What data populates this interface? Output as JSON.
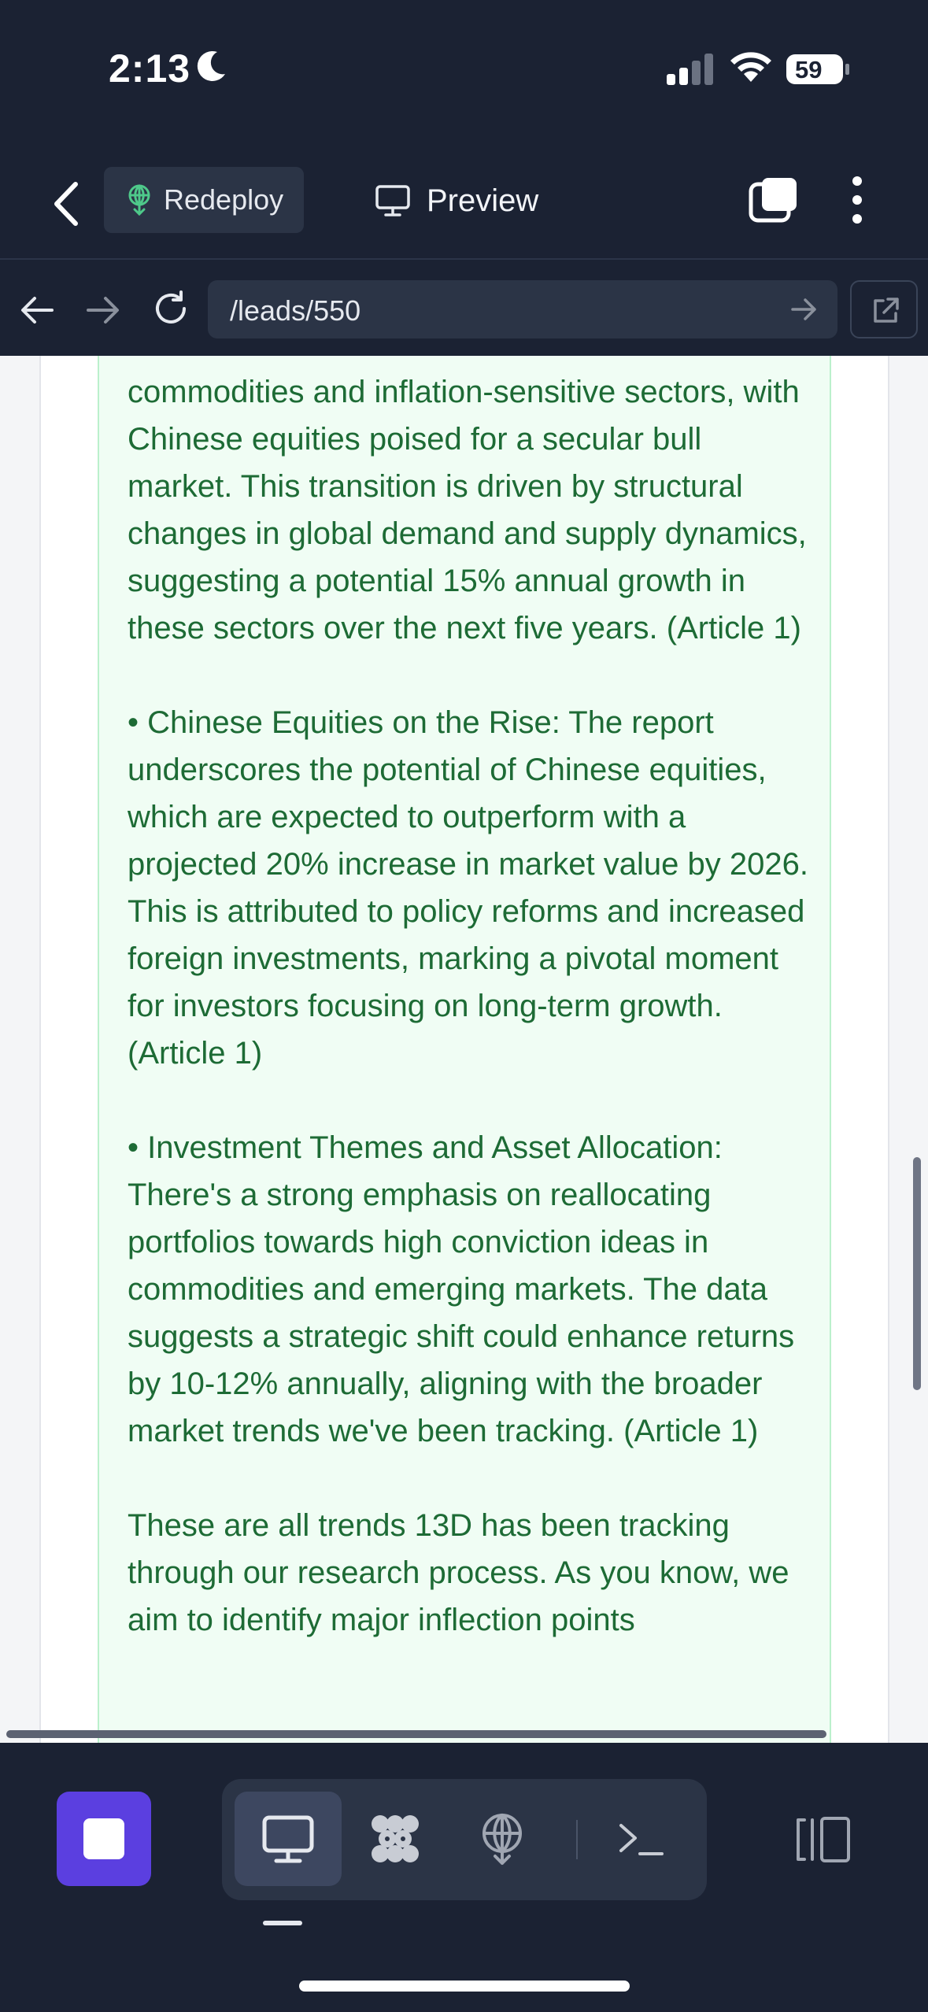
{
  "status_bar": {
    "time": "2:13",
    "battery_level": "59",
    "focus_icon": "moon-icon"
  },
  "top_bar": {
    "redeploy_label": "Redeploy",
    "preview_label": "Preview"
  },
  "url_bar": {
    "url": "/leads/550"
  },
  "email": {
    "paragraphs": [
      "commodities and inflation-sensitive sectors, with Chinese equities poised for a secular bull market. This transition is driven by structural changes in global demand and supply dynamics, suggesting a potential 15% annual growth in these sectors over the next five years. (Article 1)",
      "• Chinese Equities on the Rise: The report underscores the potential of Chinese equities, which are expected to outperform with a projected 20% increase in market value by 2026. This is attributed to policy reforms and increased foreign investments, marking a pivotal moment for investors focusing on long-term growth. (Article 1)",
      "• Investment Themes and Asset Allocation: There's a strong emphasis on reallocating portfolios towards high conviction ideas in commodities and emerging markets. The data suggests a strategic shift could enhance returns by 10-12% annually, aligning with the broader market trends we've been tracking. (Article 1)",
      "These are all trends 13D has been tracking through our research process. As you know, we aim to identify major inflection points"
    ]
  },
  "bottom_toolbar": {
    "active_tool": "webview",
    "tools": [
      "webview-icon",
      "workflows-icon",
      "deploy-icon",
      "shell-icon"
    ],
    "colors": {
      "stop_button": "#5b3fe0",
      "text_green": "#1d6b35",
      "box_bg": "#f0fdf4"
    }
  }
}
